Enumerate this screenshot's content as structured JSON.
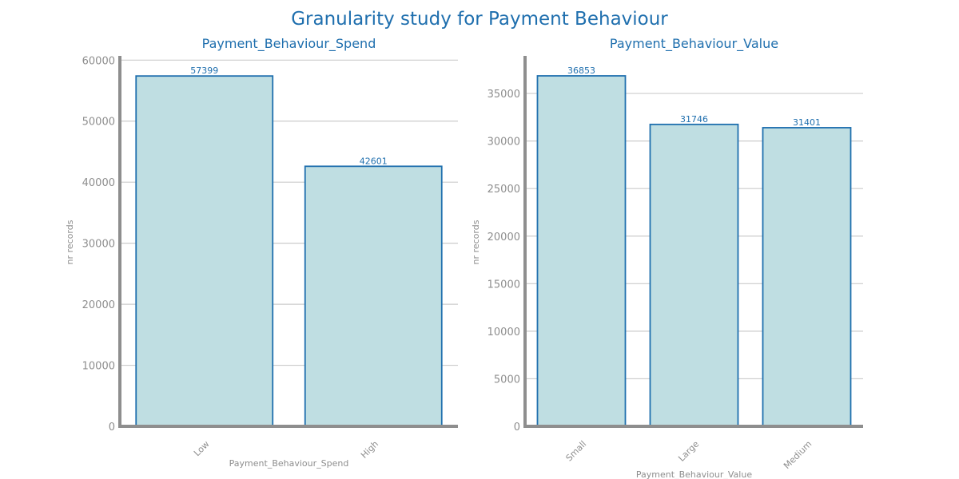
{
  "title": "Granularity study for Payment Behaviour",
  "colors": {
    "bar_fill": "#bfdee2",
    "bar_edge": "#1f6fae",
    "text": "#1f6fae",
    "axis": "#8e8e8e",
    "grid": "#cccccc"
  },
  "chart_data": [
    {
      "type": "bar",
      "title": "Payment_Behaviour_Spend",
      "xlabel": "Payment_Behaviour_Spend",
      "ylabel": "nr records",
      "categories": [
        "Low",
        "High"
      ],
      "values": [
        57399,
        42601
      ],
      "ylim": [
        0,
        60300
      ],
      "yticks": [
        0,
        10000,
        20000,
        30000,
        40000,
        50000,
        60000
      ],
      "grid": true
    },
    {
      "type": "bar",
      "title": "Payment_Behaviour_Value",
      "xlabel": "Payment_Behaviour_Value",
      "ylabel": "nr records",
      "categories": [
        "Small",
        "Large",
        "Medium"
      ],
      "values": [
        36853,
        31746,
        31401
      ],
      "ylim": [
        0,
        38700
      ],
      "yticks": [
        0,
        5000,
        10000,
        15000,
        20000,
        25000,
        30000,
        35000
      ],
      "grid": true
    }
  ]
}
